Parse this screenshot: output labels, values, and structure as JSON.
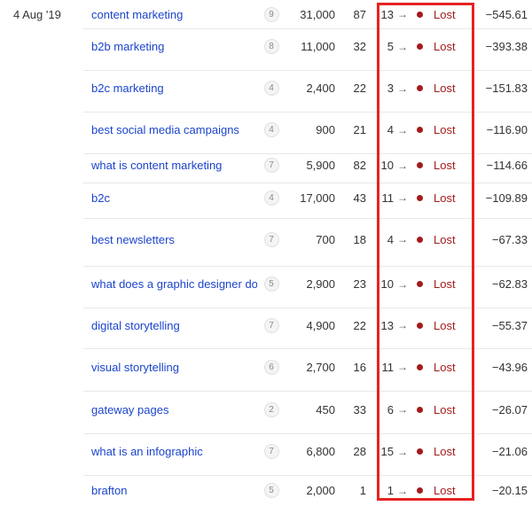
{
  "table": {
    "date_label": "4 Aug '19",
    "arrow_glyph": "→",
    "rows": [
      {
        "keyword": "content marketing",
        "badge": "9",
        "volume": "31,000",
        "clicks": "87",
        "position": "13",
        "status": "Lost",
        "change": "−545.61"
      },
      {
        "keyword": "b2b marketing",
        "badge": "8",
        "volume": "11,000",
        "clicks": "32",
        "position": "5",
        "status": "Lost",
        "change": "−393.38"
      },
      {
        "keyword": "b2c marketing",
        "badge": "4",
        "volume": "2,400",
        "clicks": "22",
        "position": "3",
        "status": "Lost",
        "change": "−151.83"
      },
      {
        "keyword": "best social media campaigns",
        "badge": "4",
        "volume": "900",
        "clicks": "21",
        "position": "4",
        "status": "Lost",
        "change": "−116.90"
      },
      {
        "keyword": "what is content marketing",
        "badge": "7",
        "volume": "5,900",
        "clicks": "82",
        "position": "10",
        "status": "Lost",
        "change": "−114.66"
      },
      {
        "keyword": "b2c",
        "badge": "4",
        "volume": "17,000",
        "clicks": "43",
        "position": "11",
        "status": "Lost",
        "change": "−109.89"
      },
      {
        "keyword": "best newsletters",
        "badge": "7",
        "volume": "700",
        "clicks": "18",
        "position": "4",
        "status": "Lost",
        "change": "−67.33"
      },
      {
        "keyword": "what does a graphic designer do",
        "badge": "5",
        "volume": "2,900",
        "clicks": "23",
        "position": "10",
        "status": "Lost",
        "change": "−62.83"
      },
      {
        "keyword": "digital storytelling",
        "badge": "7",
        "volume": "4,900",
        "clicks": "22",
        "position": "13",
        "status": "Lost",
        "change": "−55.37"
      },
      {
        "keyword": "visual storytelling",
        "badge": "6",
        "volume": "2,700",
        "clicks": "16",
        "position": "11",
        "status": "Lost",
        "change": "−43.96"
      },
      {
        "keyword": "gateway pages",
        "badge": "2",
        "volume": "450",
        "clicks": "33",
        "position": "6",
        "status": "Lost",
        "change": "−26.07"
      },
      {
        "keyword": "what is an infographic",
        "badge": "7",
        "volume": "6,800",
        "clicks": "28",
        "position": "15",
        "status": "Lost",
        "change": "−21.06"
      },
      {
        "keyword": "brafton",
        "badge": "5",
        "volume": "2,000",
        "clicks": "1",
        "position": "1",
        "status": "Lost",
        "change": "−20.15"
      }
    ]
  },
  "colors": {
    "link": "#1b44cc",
    "lost": "#a31b1b",
    "dot": "#a31b1b",
    "highlight_box": "#e52222",
    "text": "#333333",
    "divider": "#e8e8e8",
    "badge_bg": "#f4f4f4",
    "badge_border": "#e1e1e1",
    "badge_text": "#8a8a8a"
  }
}
